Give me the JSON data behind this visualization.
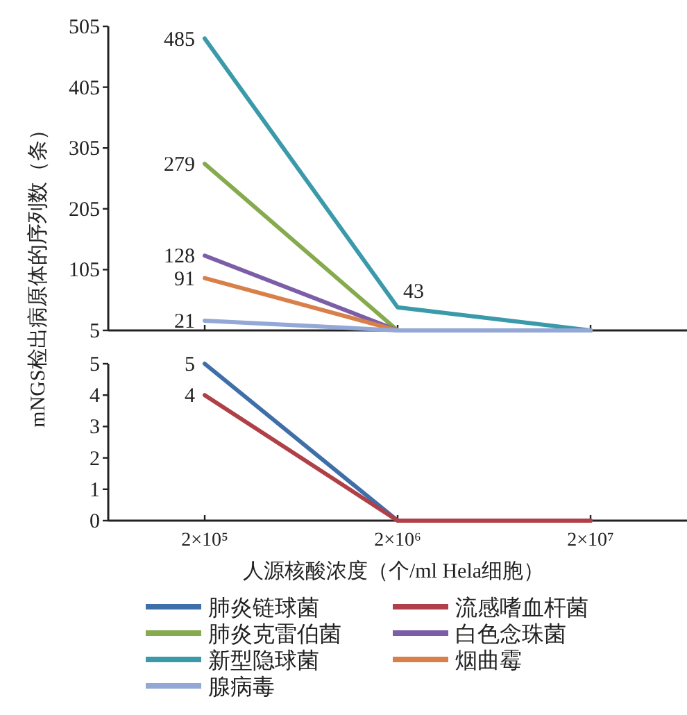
{
  "chart_data": [
    {
      "type": "line",
      "ylabel": "mNGS检出病原体的序列数（条）",
      "categories": [
        null,
        null,
        null
      ],
      "ylim": [
        5,
        505
      ],
      "yticks": [
        5,
        105,
        205,
        305,
        405,
        505
      ],
      "tick_labels": "y",
      "legend": "bottom",
      "series": [
        {
          "name": "肺炎克雷伯菌",
          "color": "#86aa4e",
          "values": [
            279,
            5,
            5
          ],
          "value_labels": [
            "279",
            null,
            null
          ]
        },
        {
          "name": "白色念珠菌",
          "color": "#7b5ea7",
          "values": [
            128,
            5,
            5
          ],
          "value_labels": [
            "128",
            null,
            null
          ]
        },
        {
          "name": "新型隐球菌",
          "color": "#3b9aaa",
          "values": [
            485,
            43,
            5
          ],
          "value_labels": [
            "485",
            "43",
            null
          ]
        },
        {
          "name": "烟曲霉",
          "color": "#d9804a",
          "values": [
            91,
            5,
            5
          ],
          "value_labels": [
            "91",
            null,
            null
          ]
        },
        {
          "name": "腺病毒",
          "color": "#93a8d6",
          "values": [
            21,
            5,
            5
          ],
          "value_labels": [
            "21",
            null,
            null
          ]
        }
      ]
    },
    {
      "type": "line",
      "xlabel": "人源核酸浓度（个/ml Hela细胞）",
      "categories": [
        "2×10⁵",
        "2×10⁶",
        "2×10⁷"
      ],
      "ylim": [
        0,
        5
      ],
      "yticks": [
        0,
        1,
        2,
        3,
        4,
        5
      ],
      "legend": "bottom",
      "series": [
        {
          "name": "肺炎链球菌",
          "color": "#3f6fa8",
          "values": [
            5,
            0,
            0
          ],
          "value_labels": [
            "5",
            null,
            null
          ]
        },
        {
          "name": "流感嗜血杆菌",
          "color": "#b04048",
          "values": [
            4,
            0,
            0
          ],
          "value_labels": [
            "4",
            null,
            null
          ]
        }
      ]
    }
  ]
}
